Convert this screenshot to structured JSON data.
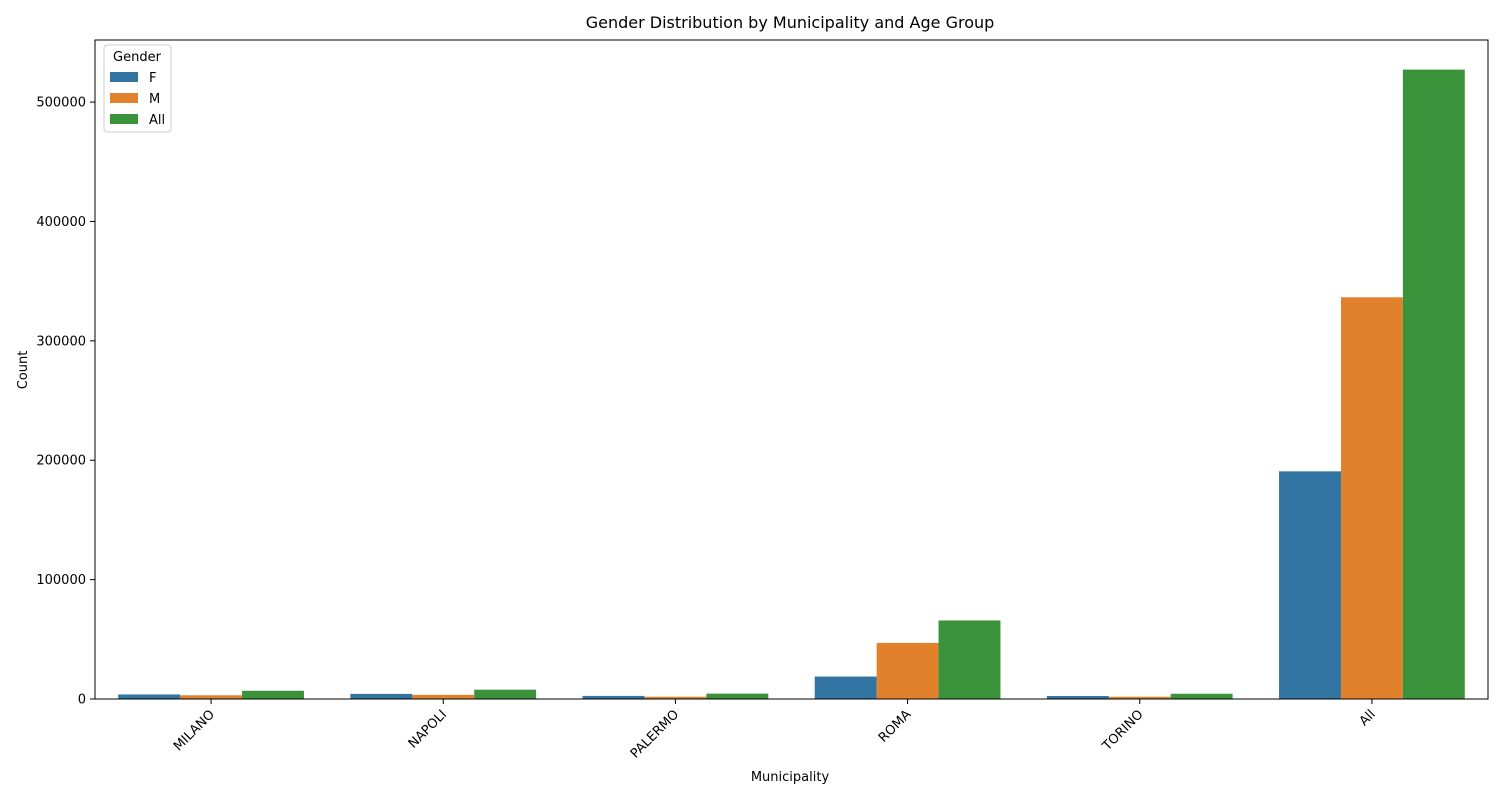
{
  "chart_data": {
    "type": "bar",
    "title": "Gender Distribution by Municipality and Age Group",
    "xlabel": "Municipality",
    "ylabel": "Count",
    "categories": [
      "MILANO",
      "NAPOLI",
      "PALERMO",
      "ROMA",
      "TORINO",
      "All"
    ],
    "series": [
      {
        "name": "F",
        "color": "#3274a1",
        "values": [
          3800,
          4300,
          2600,
          18800,
          2500,
          190700
        ]
      },
      {
        "name": "M",
        "color": "#e1812c",
        "values": [
          3100,
          3500,
          1900,
          47000,
          1900,
          336500
        ]
      },
      {
        "name": "All",
        "color": "#3a923a",
        "values": [
          6900,
          7800,
          4500,
          65800,
          4400,
          527200
        ]
      }
    ],
    "ylim": [
      0,
      552000
    ],
    "yticks": [
      "0",
      "100000",
      "200000",
      "300000",
      "400000",
      "500000"
    ],
    "ytick_values": [
      0,
      100000,
      200000,
      300000,
      400000,
      500000
    ],
    "legend": {
      "title": "Gender",
      "placement": "top-left"
    },
    "grid": false
  }
}
